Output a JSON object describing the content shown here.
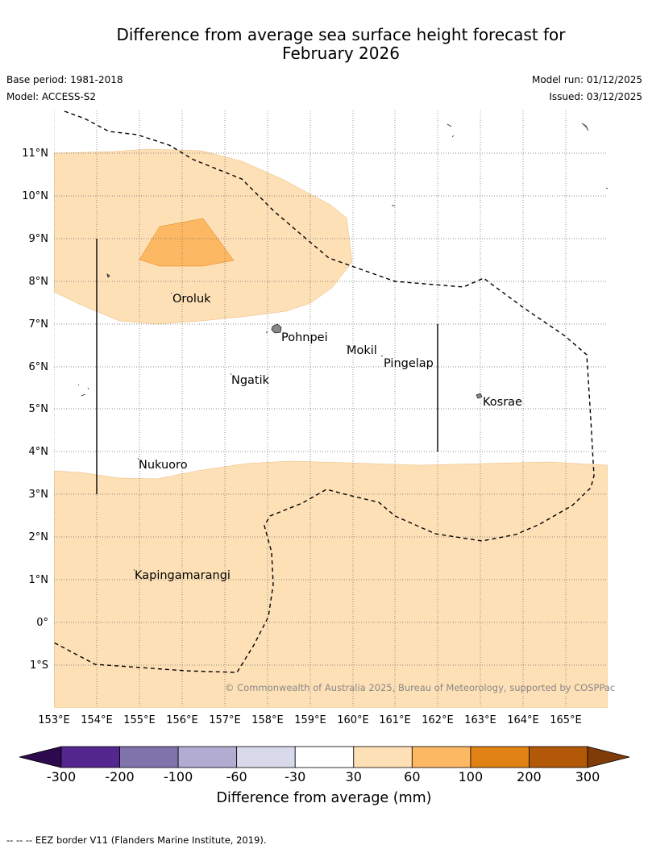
{
  "title": {
    "line1": "Difference from average sea surface height forecast for",
    "line2": "February 2026"
  },
  "meta": {
    "base_period": "Base period: 1981-2018",
    "model": "Model: ACCESS-S2",
    "model_run": "Model run: 01/12/2025",
    "issued": "Issued: 03/12/2025"
  },
  "map": {
    "lon_labels": [
      "153°E",
      "154°E",
      "155°E",
      "156°E",
      "157°E",
      "158°E",
      "159°E",
      "160°E",
      "161°E",
      "162°E",
      "163°E",
      "164°E",
      "165°E"
    ],
    "lat_labels": [
      "11°N",
      "10°N",
      "9°N",
      "8°N",
      "7°N",
      "6°N",
      "5°N",
      "4°N",
      "3°N",
      "2°N",
      "1°N",
      "0°",
      "1°S"
    ],
    "places": [
      {
        "name": "Oroluk"
      },
      {
        "name": "Pohnpei"
      },
      {
        "name": "Mokil"
      },
      {
        "name": "Pingelap"
      },
      {
        "name": "Ngatik"
      },
      {
        "name": "Kosrae"
      },
      {
        "name": "Nukuoro"
      },
      {
        "name": "Kapingamarangi"
      }
    ],
    "copyright": "© Commonwealth of Australia 2025, Bureau of Meteorology, supported by COSPPac"
  },
  "colorbar": {
    "label": "Difference from average (mm)",
    "ticks": [
      "-300",
      "-200",
      "-100",
      "-60",
      "-30",
      "30",
      "60",
      "100",
      "200",
      "300"
    ],
    "colors": {
      "below_min": "#2d0a4e",
      "bins": [
        "#54278f",
        "#8073ac",
        "#b2abd2",
        "#d8daeb",
        "#ffffff",
        "#fee0b6",
        "#fdb863",
        "#e08214",
        "#b35806"
      ],
      "above_max": "#7f3b08"
    }
  },
  "colors": {
    "light_orange": "#fee0b6",
    "mid_orange": "#fdb863"
  },
  "footer": {
    "eez_symbol": "-- -- --",
    "eez_note": "EEZ border V11 (Flanders Marine Institute, 2019)."
  }
}
